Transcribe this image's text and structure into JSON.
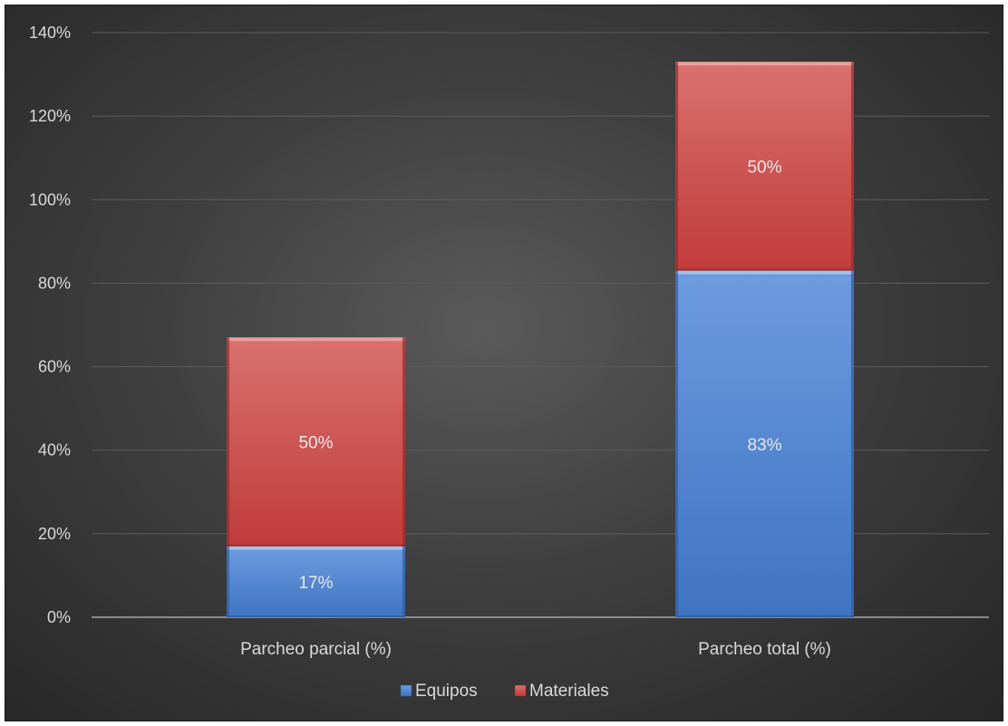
{
  "chart_data": {
    "type": "bar",
    "stacked": true,
    "categories": [
      "Parcheo parcial (%)",
      "Parcheo total (%)"
    ],
    "series": [
      {
        "name": "Equipos",
        "values": [
          17,
          83
        ],
        "labels": [
          "17%",
          "83%"
        ],
        "color": "#4a7fcb"
      },
      {
        "name": "Materiales",
        "values": [
          50,
          50
        ],
        "labels": [
          "50%",
          "50%"
        ],
        "color": "#c94442"
      }
    ],
    "ylim": [
      0,
      140
    ],
    "yticks": [
      0,
      20,
      40,
      60,
      80,
      100,
      120,
      140
    ],
    "ytick_labels": [
      "0%",
      "20%",
      "40%",
      "60%",
      "80%",
      "100%",
      "120%",
      "140%"
    ],
    "grid": true,
    "legend": "bottom",
    "background": "#3f3f3f"
  }
}
